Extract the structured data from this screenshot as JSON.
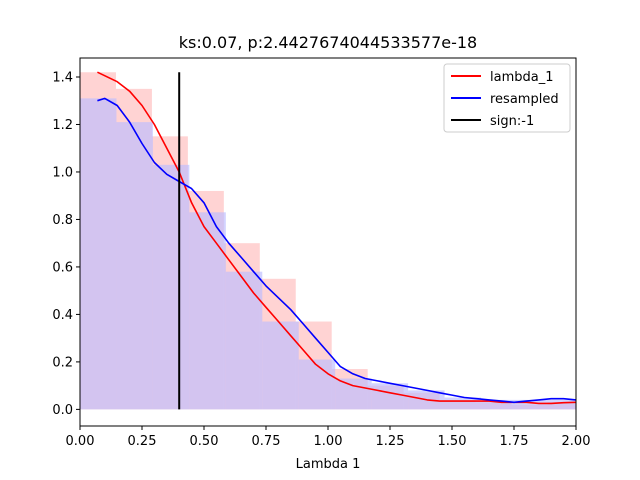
{
  "chart_data": {
    "type": "bar",
    "title": "ks:0.07, p:2.4427674044533577e-18",
    "xlabel": "Lambda 1",
    "ylabel": "",
    "xlim": [
      0.0,
      2.0
    ],
    "ylim": [
      -0.07,
      1.48
    ],
    "xticks": [
      "0.00",
      "0.25",
      "0.50",
      "0.75",
      "1.00",
      "1.25",
      "1.50",
      "1.75",
      "2.00"
    ],
    "yticks": [
      "0.0",
      "0.2",
      "0.4",
      "0.6",
      "0.8",
      "1.0",
      "1.2",
      "1.4"
    ],
    "grid": false,
    "legend_position": "top-right",
    "colors": {
      "lambda_1": "#ff0000",
      "resampled": "#0000ff",
      "sign": "#000000",
      "hist_lambda_1": "#ffbbbb",
      "hist_resampled": "#bbbbff",
      "hist_overlap": "#bf8fcf"
    },
    "histograms": [
      {
        "name": "lambda_1",
        "bins": [
          {
            "x0": 0.0,
            "x1": 0.145,
            "h": 1.42
          },
          {
            "x0": 0.145,
            "x1": 0.29,
            "h": 1.35
          },
          {
            "x0": 0.29,
            "x1": 0.435,
            "h": 1.15
          },
          {
            "x0": 0.435,
            "x1": 0.58,
            "h": 0.92
          },
          {
            "x0": 0.58,
            "x1": 0.725,
            "h": 0.7
          },
          {
            "x0": 0.725,
            "x1": 0.87,
            "h": 0.55
          },
          {
            "x0": 0.87,
            "x1": 1.015,
            "h": 0.37
          },
          {
            "x0": 1.015,
            "x1": 1.16,
            "h": 0.17
          },
          {
            "x0": 1.16,
            "x1": 1.305,
            "h": 0.1
          },
          {
            "x0": 1.305,
            "x1": 1.45,
            "h": 0.07
          },
          {
            "x0": 1.45,
            "x1": 1.595,
            "h": 0.04
          },
          {
            "x0": 1.595,
            "x1": 1.74,
            "h": 0.03
          },
          {
            "x0": 1.74,
            "x1": 1.885,
            "h": 0.02
          },
          {
            "x0": 1.885,
            "x1": 2.03,
            "h": 0.03
          }
        ]
      },
      {
        "name": "resampled",
        "bins": [
          {
            "x0": 0.0,
            "x1": 0.147,
            "h": 1.31
          },
          {
            "x0": 0.147,
            "x1": 0.294,
            "h": 1.21
          },
          {
            "x0": 0.294,
            "x1": 0.441,
            "h": 1.03
          },
          {
            "x0": 0.441,
            "x1": 0.588,
            "h": 0.83
          },
          {
            "x0": 0.588,
            "x1": 0.735,
            "h": 0.58
          },
          {
            "x0": 0.735,
            "x1": 0.882,
            "h": 0.37
          },
          {
            "x0": 0.882,
            "x1": 1.029,
            "h": 0.21
          },
          {
            "x0": 1.029,
            "x1": 1.176,
            "h": 0.13
          },
          {
            "x0": 1.176,
            "x1": 1.323,
            "h": 0.11
          },
          {
            "x0": 1.323,
            "x1": 1.47,
            "h": 0.08
          },
          {
            "x0": 1.47,
            "x1": 1.617,
            "h": 0.05
          },
          {
            "x0": 1.617,
            "x1": 1.764,
            "h": 0.04
          },
          {
            "x0": 1.764,
            "x1": 1.911,
            "h": 0.04
          },
          {
            "x0": 1.911,
            "x1": 2.058,
            "h": 0.04
          }
        ]
      }
    ],
    "series": [
      {
        "name": "lambda_1",
        "x": [
          0.07,
          0.15,
          0.2,
          0.25,
          0.3,
          0.35,
          0.4,
          0.45,
          0.5,
          0.55,
          0.6,
          0.65,
          0.7,
          0.75,
          0.8,
          0.85,
          0.9,
          0.95,
          1.0,
          1.05,
          1.1,
          1.15,
          1.2,
          1.25,
          1.3,
          1.35,
          1.4,
          1.45,
          1.5,
          1.55,
          1.6,
          1.65,
          1.7,
          1.75,
          1.8,
          1.85,
          1.9,
          1.95,
          2.0
        ],
        "y": [
          1.42,
          1.38,
          1.34,
          1.28,
          1.2,
          1.1,
          1.0,
          0.87,
          0.77,
          0.7,
          0.63,
          0.56,
          0.49,
          0.43,
          0.37,
          0.31,
          0.25,
          0.19,
          0.15,
          0.12,
          0.1,
          0.09,
          0.08,
          0.07,
          0.06,
          0.05,
          0.04,
          0.035,
          0.035,
          0.035,
          0.035,
          0.035,
          0.03,
          0.03,
          0.03,
          0.025,
          0.025,
          0.028,
          0.03
        ]
      },
      {
        "name": "resampled",
        "x": [
          0.07,
          0.1,
          0.15,
          0.2,
          0.25,
          0.3,
          0.35,
          0.4,
          0.45,
          0.5,
          0.55,
          0.6,
          0.65,
          0.7,
          0.75,
          0.8,
          0.85,
          0.9,
          0.95,
          1.0,
          1.05,
          1.1,
          1.15,
          1.2,
          1.25,
          1.3,
          1.35,
          1.4,
          1.45,
          1.5,
          1.55,
          1.6,
          1.65,
          1.7,
          1.75,
          1.8,
          1.85,
          1.9,
          1.95,
          2.0
        ],
        "y": [
          1.3,
          1.31,
          1.28,
          1.21,
          1.12,
          1.04,
          0.99,
          0.96,
          0.93,
          0.87,
          0.77,
          0.7,
          0.64,
          0.58,
          0.52,
          0.47,
          0.42,
          0.36,
          0.3,
          0.24,
          0.18,
          0.15,
          0.13,
          0.12,
          0.11,
          0.1,
          0.09,
          0.08,
          0.07,
          0.06,
          0.05,
          0.045,
          0.04,
          0.035,
          0.03,
          0.035,
          0.04,
          0.045,
          0.045,
          0.04
        ]
      }
    ],
    "vline": {
      "name": "sign:-1",
      "x": 0.4,
      "y0": 0.0,
      "y1": 1.42
    },
    "legend": [
      "lambda_1",
      "resampled",
      "sign:-1"
    ]
  }
}
